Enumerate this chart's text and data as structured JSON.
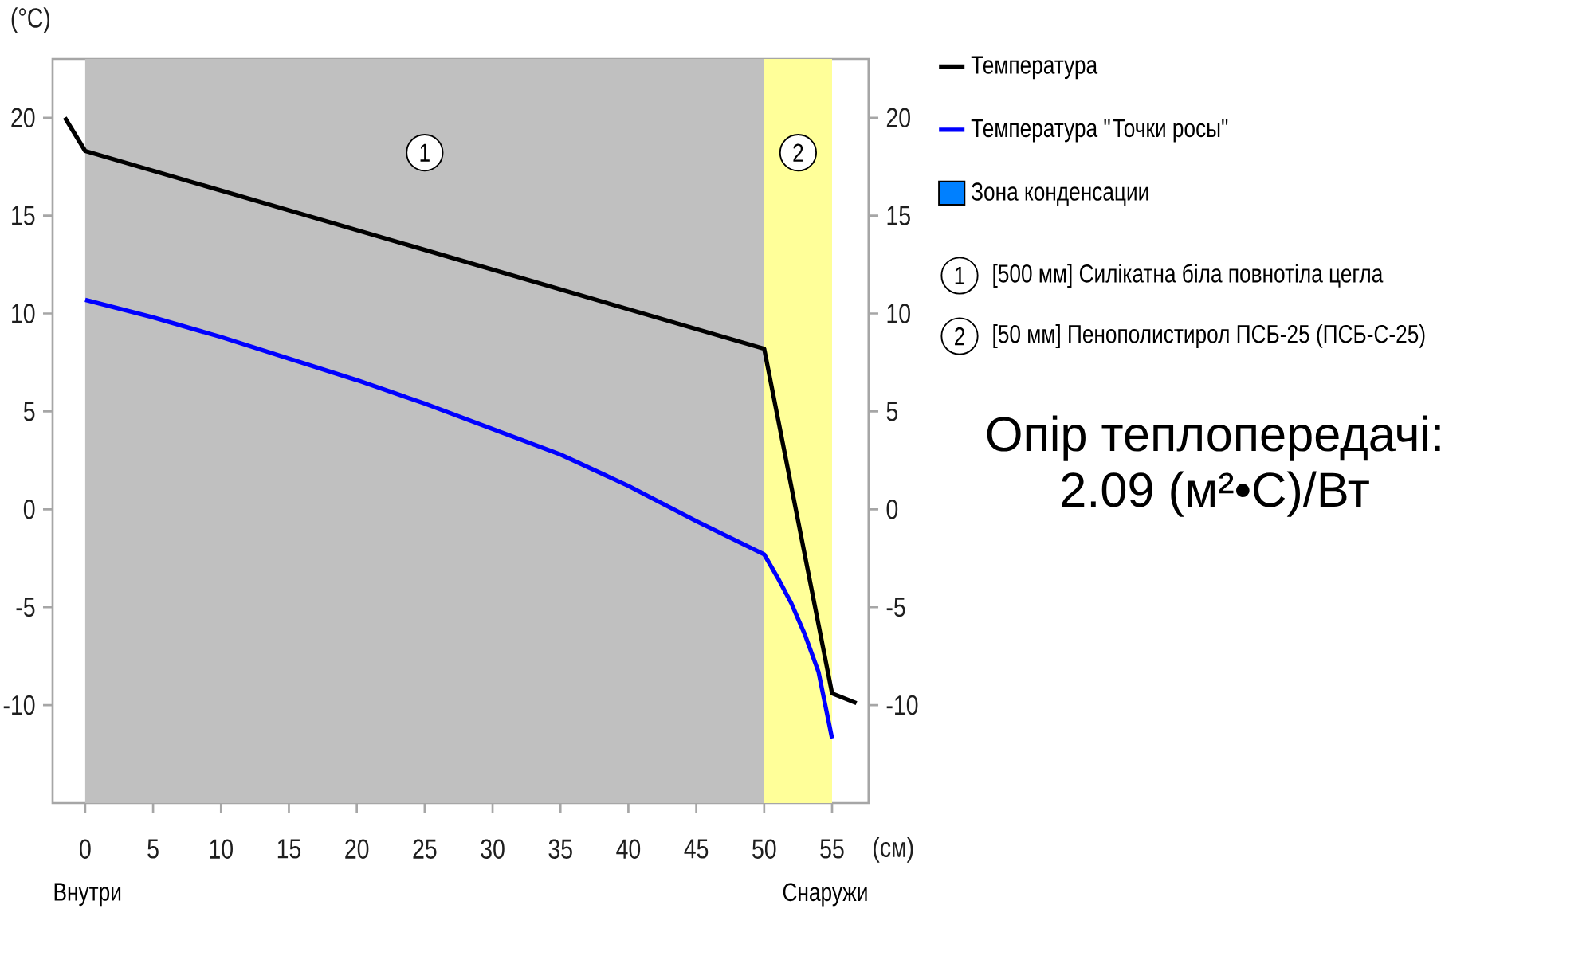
{
  "chart_data": {
    "type": "line",
    "xlabel": "(см)",
    "ylabel": "(°C)",
    "series": [
      {
        "name": "Температура",
        "color": "#000000",
        "x": [
          -1.5,
          0,
          50,
          55,
          56.8
        ],
        "values": [
          20,
          18.3,
          8.2,
          -9.4,
          -9.9
        ]
      },
      {
        "name": "Температура \"Точки росы\"",
        "color": "#0000ff",
        "x": [
          0,
          5,
          10,
          15,
          20,
          25,
          30,
          35,
          40,
          45,
          50,
          51,
          52,
          53,
          54,
          55
        ],
        "values": [
          10.7,
          9.8,
          8.8,
          7.7,
          6.6,
          5.4,
          4.1,
          2.8,
          1.2,
          -0.6,
          -2.3,
          -3.5,
          -4.8,
          -6.4,
          -8.3,
          -11.7
        ]
      },
      {
        "name": "Зона конденсации",
        "type": "area",
        "color": "#0080ff"
      }
    ],
    "xlim": [
      -2.4,
      57.7
    ],
    "ylim": [
      -15,
      23
    ],
    "xticks": [
      0,
      5,
      10,
      15,
      20,
      25,
      30,
      35,
      40,
      45,
      50,
      55
    ],
    "yticks": [
      -10,
      -5,
      0,
      5,
      10,
      15,
      20
    ],
    "y2lim": [
      -15,
      23
    ],
    "y2ticks": [
      -10,
      -5,
      0,
      5,
      10,
      15,
      20
    ],
    "bands": [
      {
        "axis": "x",
        "from": 0,
        "to": 50,
        "label": "1",
        "color": "#c0c0c0"
      },
      {
        "axis": "x",
        "from": 50,
        "to": 55,
        "label": "2",
        "color": "#ffff99"
      }
    ],
    "annotations": [
      "[500 мм] Силікатна біла повнотіла цегла",
      "[50 мм] Пенополистирол ПСБ-25 (ПСБ-С-25)",
      "Опір теплопередачі:",
      "2.09 (м²•С)/Вт",
      "Внутри",
      "Снаружи"
    ],
    "legend": "right",
    "grid": false,
    "marker": "none",
    "line_style": "solid"
  }
}
